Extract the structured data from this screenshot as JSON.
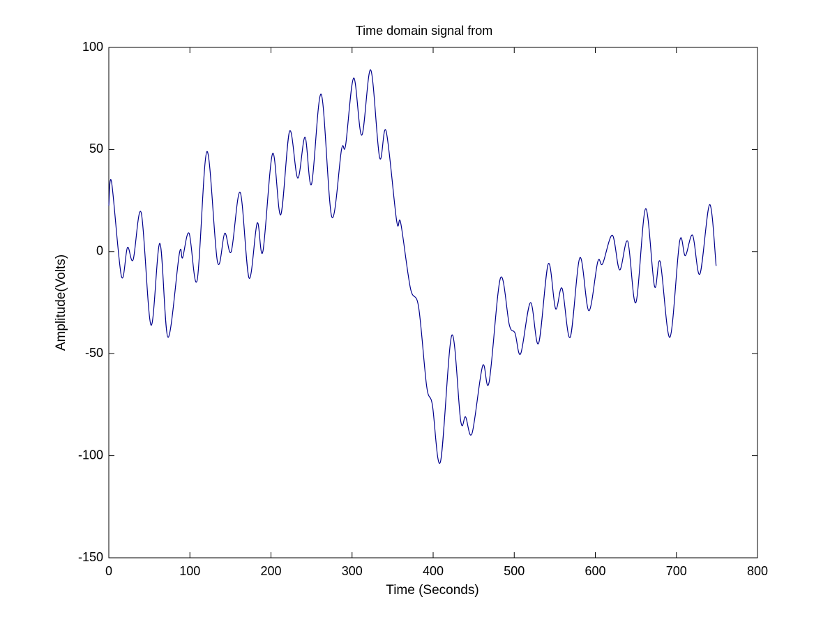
{
  "chart_data": {
    "type": "line",
    "title": "Time domain signal from",
    "x_label": "Time (Seconds)",
    "y_label": "Amplitude(Volts)",
    "xlim": [
      0,
      800
    ],
    "ylim": [
      -150,
      100
    ],
    "xticks": [
      0,
      100,
      200,
      300,
      400,
      500,
      600,
      700,
      800
    ],
    "yticks": [
      -150,
      -100,
      -50,
      0,
      50,
      100
    ],
    "grid": false,
    "series": [
      {
        "color": "#00008b",
        "x": [
          0,
          3.4,
          15.5,
          23,
          30,
          40,
          52,
          63,
          73,
          87,
          91,
          99,
          109,
          121,
          134,
          143,
          151,
          162,
          173,
          183,
          190,
          202,
          212,
          223,
          233,
          242,
          250,
          262,
          275,
          287,
          292,
          302,
          312,
          323,
          334,
          342,
          355,
          360,
          372,
          382,
          392,
          399,
          409,
          423,
          434,
          440,
          448,
          461,
          469,
          483,
          494,
          501,
          508,
          520,
          530,
          542,
          551,
          559,
          569,
          581,
          592,
          603,
          609,
          621,
          630,
          640,
          650,
          662,
          673,
          680,
          692,
          704,
          711,
          720,
          729,
          741,
          749
        ],
        "values": [
          22.5,
          34,
          -12,
          2,
          -4,
          19,
          -36,
          4,
          -42,
          -1,
          -3,
          9,
          -14,
          49,
          -5,
          9,
          0,
          29,
          -13,
          14,
          0,
          48,
          18,
          59,
          36,
          56,
          33,
          77,
          17,
          50,
          52,
          85,
          57,
          89,
          46,
          59,
          15,
          14,
          -18,
          -27,
          -66,
          -75,
          -103,
          -41,
          -83,
          -81,
          -89,
          -56,
          -64,
          -13,
          -36,
          -40,
          -50,
          -25,
          -45,
          -6,
          -28,
          -18,
          -42,
          -3,
          -29,
          -5,
          -6,
          8,
          -9,
          5,
          -25,
          21,
          -17,
          -5,
          -42,
          5,
          -2,
          8,
          -11,
          23,
          -7
        ]
      }
    ]
  }
}
